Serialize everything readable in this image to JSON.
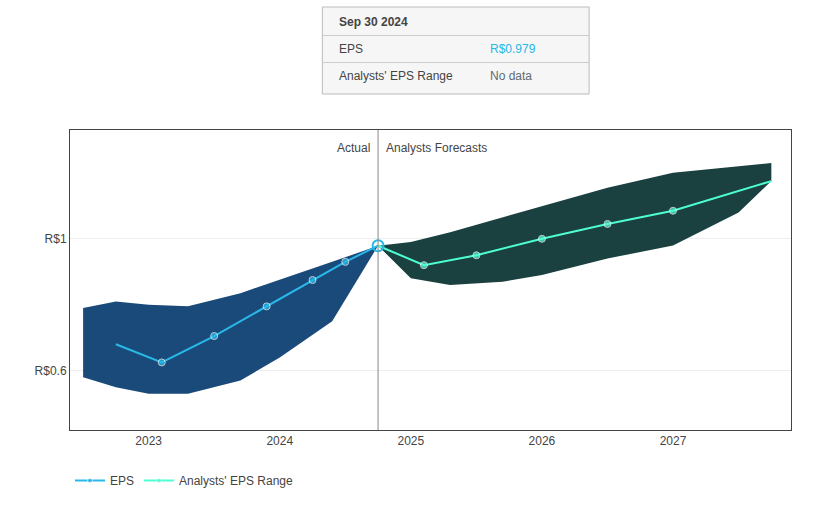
{
  "chart_data": {
    "type": "line",
    "xlim": [
      2022.4,
      2027.9
    ],
    "xticks": [
      2023,
      2024,
      2025,
      2026,
      2027
    ],
    "ylim": [
      0.42,
      1.33
    ],
    "yticks": [
      {
        "value": 0.6,
        "label": "R$0.6"
      },
      {
        "value": 1.0,
        "label": "R$1"
      }
    ],
    "grid": "y",
    "legend": "lower left",
    "divider_x": 2024.75,
    "annotations": [
      "Actual",
      "Analysts Forecasts"
    ],
    "series": [
      {
        "name": "EPS",
        "color": "#29b8e8",
        "marker": "circle",
        "x": [
          2022.75,
          2023.1,
          2023.5,
          2023.9,
          2024.25,
          2024.5,
          2024.75
        ],
        "values": [
          0.68,
          0.625,
          0.705,
          0.795,
          0.875,
          0.93,
          0.979
        ],
        "band": {
          "color": "#1a4a7a",
          "x": [
            2022.5,
            2022.75,
            2023.0,
            2023.3,
            2023.7,
            2024.0,
            2024.4,
            2024.75
          ],
          "upper": [
            0.79,
            0.81,
            0.8,
            0.795,
            0.835,
            0.875,
            0.93,
            0.979
          ],
          "lower": [
            0.58,
            0.55,
            0.53,
            0.53,
            0.57,
            0.64,
            0.75,
            0.979
          ]
        }
      },
      {
        "name": "Analysts' EPS Range",
        "color": "#4dffd2",
        "marker": "circle",
        "x": [
          2024.75,
          2025.1,
          2025.5,
          2026.0,
          2026.5,
          2027.0,
          2027.75
        ],
        "values": [
          0.979,
          0.92,
          0.95,
          1.0,
          1.045,
          1.085,
          1.175
        ],
        "band": {
          "color": "#1a4040",
          "x": [
            2024.75,
            2025.0,
            2025.3,
            2025.7,
            2026.0,
            2026.5,
            2027.0,
            2027.5,
            2027.75
          ],
          "upper": [
            0.979,
            0.99,
            1.02,
            1.065,
            1.1,
            1.155,
            1.2,
            1.22,
            1.23
          ],
          "lower": [
            0.979,
            0.88,
            0.86,
            0.87,
            0.89,
            0.94,
            0.98,
            1.08,
            1.175
          ]
        }
      }
    ],
    "tooltip": {
      "title": "Sep 30 2024",
      "rows": [
        {
          "label": "EPS",
          "value": "R$0.979",
          "color": "#29b8e8"
        },
        {
          "label": "Analysts' EPS Range",
          "value": "No data",
          "color": "#606a74"
        }
      ]
    }
  }
}
